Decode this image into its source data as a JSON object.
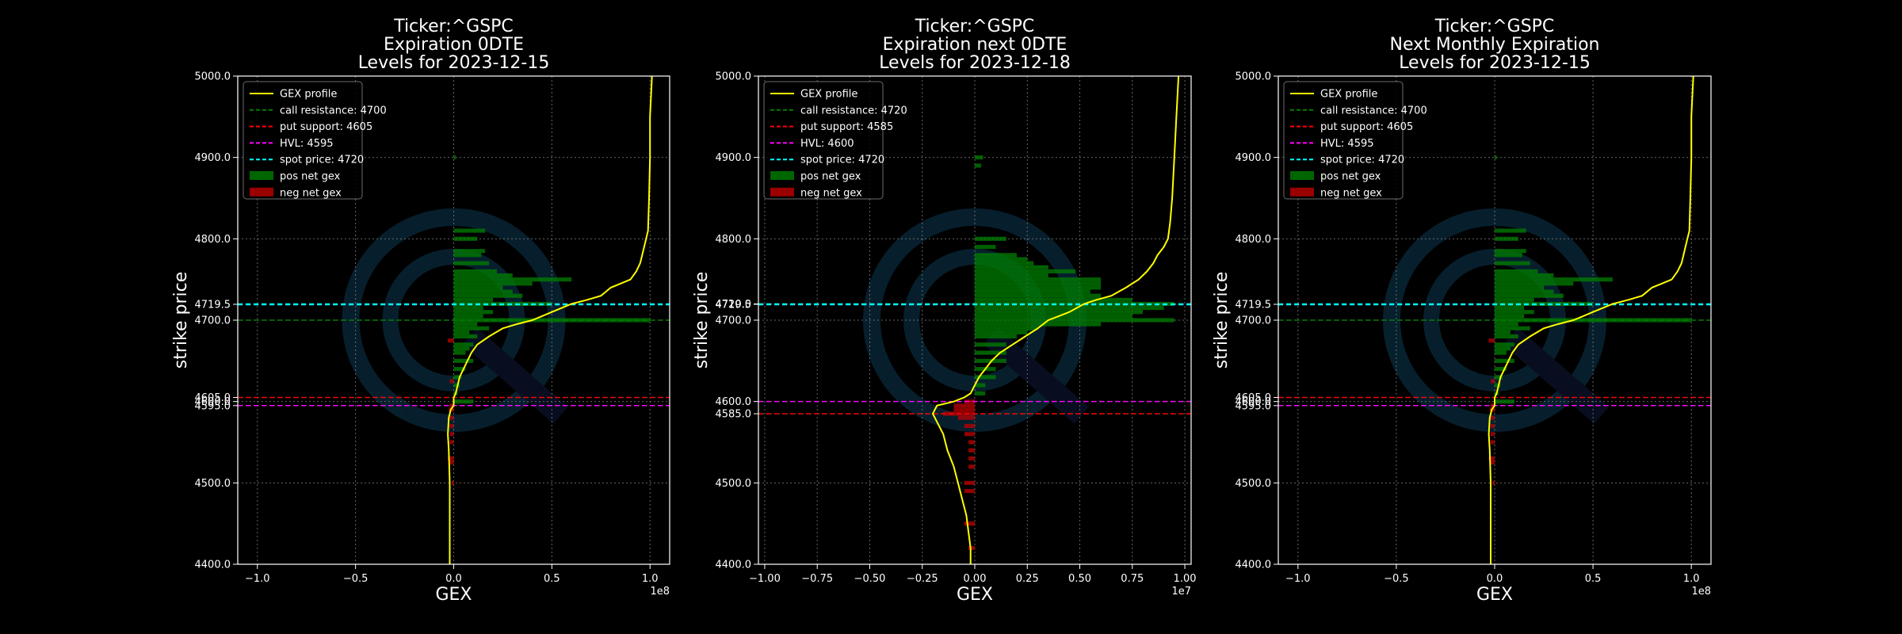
{
  "figure": {
    "background": "#000000",
    "watermark_color": "#0d3a52"
  },
  "colors": {
    "gex_profile": "#ffff00",
    "call_resistance": "#008000",
    "put_support": "#ff0000",
    "hvl": "#ff00ff",
    "spot_price": "#00ffff",
    "pos_net_gex": "#008000",
    "neg_net_gex": "#c00000",
    "axis": "#ffffff",
    "grid": "#808080"
  },
  "chart_data": [
    {
      "type": "bar",
      "orientation": "horizontal",
      "title": [
        "Ticker:^GSPC",
        "Expiration 0DTE",
        "Levels for 2023-12-15"
      ],
      "xlabel": "GEX",
      "ylabel": "strike price",
      "x_offset_label": "1e8",
      "xlim": [
        -1.1,
        1.1
      ],
      "ylim": [
        4400,
        5000
      ],
      "xticks": [
        -1.0,
        -0.5,
        0.0,
        0.5,
        1.0
      ],
      "xtick_labels": [
        "−1.0",
        "−0.5",
        "0.0",
        "0.5",
        "1.0"
      ],
      "yticks": [
        4400,
        4500,
        4595,
        4600,
        4605,
        4700,
        4719.5,
        4800,
        4900,
        5000
      ],
      "ytick_labels": [
        "4400.0",
        "4500.0",
        "4595.0",
        "4600.0",
        "4605.0",
        "4700.0",
        "4719.5",
        "4800.0",
        "4900.0",
        "5000.0"
      ],
      "grid": true,
      "legend_position": "top-left",
      "legend": [
        "GEX profile",
        "call resistance: 4700",
        "put support: 4605",
        "HVL: 4595",
        "spot price: 4720",
        "pos net gex",
        "neg net gex"
      ],
      "levels": {
        "call_resistance": 4700,
        "put_support": 4605,
        "hvl": 4595,
        "spot_price": 4719.5
      },
      "net_gex_bars": [
        {
          "strike": 4900,
          "value": 0.01
        },
        {
          "strike": 4810,
          "value": 0.16
        },
        {
          "strike": 4800,
          "value": 0.12
        },
        {
          "strike": 4785,
          "value": 0.16
        },
        {
          "strike": 4780,
          "value": 0.14
        },
        {
          "strike": 4770,
          "value": 0.18
        },
        {
          "strike": 4760,
          "value": 0.22
        },
        {
          "strike": 4755,
          "value": 0.3
        },
        {
          "strike": 4750,
          "value": 0.6
        },
        {
          "strike": 4745,
          "value": 0.4
        },
        {
          "strike": 4740,
          "value": 0.25
        },
        {
          "strike": 4735,
          "value": 0.3
        },
        {
          "strike": 4730,
          "value": 0.35
        },
        {
          "strike": 4725,
          "value": 0.2
        },
        {
          "strike": 4720,
          "value": 0.5
        },
        {
          "strike": 4715,
          "value": 0.15
        },
        {
          "strike": 4710,
          "value": 0.2
        },
        {
          "strike": 4705,
          "value": 0.15
        },
        {
          "strike": 4700,
          "value": 1.0
        },
        {
          "strike": 4695,
          "value": 0.12
        },
        {
          "strike": 4690,
          "value": 0.18
        },
        {
          "strike": 4685,
          "value": 0.08
        },
        {
          "strike": 4680,
          "value": 0.12
        },
        {
          "strike": 4675,
          "value": -0.03
        },
        {
          "strike": 4670,
          "value": 0.1
        },
        {
          "strike": 4665,
          "value": 0.08
        },
        {
          "strike": 4660,
          "value": 0.06
        },
        {
          "strike": 4650,
          "value": 0.1
        },
        {
          "strike": 4640,
          "value": 0.06
        },
        {
          "strike": 4630,
          "value": 0.04
        },
        {
          "strike": 4625,
          "value": -0.02
        },
        {
          "strike": 4620,
          "value": 0.03
        },
        {
          "strike": 4610,
          "value": 0.02
        },
        {
          "strike": 4600,
          "value": 0.1
        },
        {
          "strike": 4595,
          "value": -0.02
        },
        {
          "strike": 4590,
          "value": -0.025
        },
        {
          "strike": 4580,
          "value": -0.02
        },
        {
          "strike": 4570,
          "value": -0.02
        },
        {
          "strike": 4560,
          "value": -0.02
        },
        {
          "strike": 4550,
          "value": -0.02
        },
        {
          "strike": 4530,
          "value": -0.03
        },
        {
          "strike": 4525,
          "value": -0.025
        },
        {
          "strike": 4500,
          "value": -0.01
        }
      ],
      "profile": {
        "strike": [
          4400,
          4450,
          4500,
          4540,
          4560,
          4580,
          4590,
          4595,
          4600,
          4605,
          4610,
          4620,
          4630,
          4640,
          4650,
          4660,
          4670,
          4680,
          4690,
          4695,
          4700,
          4705,
          4710,
          4715,
          4720,
          4725,
          4730,
          4740,
          4745,
          4750,
          4760,
          4770,
          4780,
          4790,
          4800,
          4810,
          4850,
          4900,
          4950,
          5000
        ],
        "value": [
          -0.02,
          -0.02,
          -0.02,
          -0.025,
          -0.03,
          -0.025,
          -0.015,
          0.0,
          0.0,
          0.0,
          0.01,
          0.02,
          0.03,
          0.05,
          0.07,
          0.09,
          0.12,
          0.18,
          0.25,
          0.32,
          0.4,
          0.45,
          0.5,
          0.55,
          0.6,
          0.68,
          0.75,
          0.8,
          0.85,
          0.9,
          0.93,
          0.95,
          0.96,
          0.97,
          0.98,
          0.99,
          0.995,
          1.0,
          1.0,
          1.01
        ]
      }
    },
    {
      "type": "bar",
      "orientation": "horizontal",
      "title": [
        "Ticker:^GSPC",
        "Expiration next 0DTE",
        "Levels for 2023-12-18"
      ],
      "xlabel": "GEX",
      "ylabel": "strike price",
      "x_offset_label": "1e7",
      "xlim": [
        -1.03,
        1.03
      ],
      "ylim": [
        4400,
        5000
      ],
      "xticks": [
        -1.0,
        -0.75,
        -0.5,
        -0.25,
        0.0,
        0.25,
        0.5,
        0.75,
        1.0
      ],
      "xtick_labels": [
        "−1.00",
        "−0.75",
        "−0.50",
        "−0.25",
        "0.00",
        "0.25",
        "0.50",
        "0.75",
        "1.00"
      ],
      "yticks": [
        4400,
        4500,
        4585,
        4600,
        4700,
        4719.5,
        4720,
        4800,
        4900,
        5000
      ],
      "ytick_labels": [
        "4400.0",
        "4500.0",
        "4585.0",
        "4600.0",
        "4700.0",
        "4719.5",
        "4720.0",
        "4800.0",
        "4900.0",
        "5000.0"
      ],
      "grid": true,
      "legend_position": "top-left",
      "legend": [
        "GEX profile",
        "call resistance: 4720",
        "put support: 4585",
        "HVL: 4600",
        "spot price: 4720",
        "pos net gex",
        "neg net gex"
      ],
      "levels": {
        "call_resistance": 4720,
        "put_support": 4585,
        "hvl": 4600,
        "spot_price": 4719.5
      },
      "net_gex_bars": [
        {
          "strike": 4900,
          "value": 0.04
        },
        {
          "strike": 4890,
          "value": 0.03
        },
        {
          "strike": 4800,
          "value": 0.15
        },
        {
          "strike": 4790,
          "value": 0.1
        },
        {
          "strike": 4780,
          "value": 0.2
        },
        {
          "strike": 4775,
          "value": 0.25
        },
        {
          "strike": 4770,
          "value": 0.28
        },
        {
          "strike": 4765,
          "value": 0.35
        },
        {
          "strike": 4760,
          "value": 0.48
        },
        {
          "strike": 4755,
          "value": 0.35
        },
        {
          "strike": 4750,
          "value": 0.6
        },
        {
          "strike": 4745,
          "value": 0.6
        },
        {
          "strike": 4740,
          "value": 0.6
        },
        {
          "strike": 4735,
          "value": 0.55
        },
        {
          "strike": 4730,
          "value": 0.6
        },
        {
          "strike": 4725,
          "value": 0.75
        },
        {
          "strike": 4720,
          "value": 0.95
        },
        {
          "strike": 4715,
          "value": 0.9
        },
        {
          "strike": 4710,
          "value": 0.8
        },
        {
          "strike": 4705,
          "value": 0.75
        },
        {
          "strike": 4700,
          "value": 0.95
        },
        {
          "strike": 4695,
          "value": 0.6
        },
        {
          "strike": 4690,
          "value": 0.3
        },
        {
          "strike": 4685,
          "value": 0.25
        },
        {
          "strike": 4680,
          "value": 0.2
        },
        {
          "strike": 4670,
          "value": 0.15
        },
        {
          "strike": 4660,
          "value": 0.15
        },
        {
          "strike": 4650,
          "value": 0.15
        },
        {
          "strike": 4640,
          "value": 0.1
        },
        {
          "strike": 4630,
          "value": 0.1
        },
        {
          "strike": 4620,
          "value": 0.05
        },
        {
          "strike": 4610,
          "value": 0.05
        },
        {
          "strike": 4600,
          "value": -0.05
        },
        {
          "strike": 4595,
          "value": -0.1
        },
        {
          "strike": 4590,
          "value": -0.1
        },
        {
          "strike": 4585,
          "value": -0.15
        },
        {
          "strike": 4580,
          "value": -0.08
        },
        {
          "strike": 4570,
          "value": -0.05
        },
        {
          "strike": 4560,
          "value": -0.05
        },
        {
          "strike": 4550,
          "value": -0.03
        },
        {
          "strike": 4540,
          "value": -0.03
        },
        {
          "strike": 4530,
          "value": -0.03
        },
        {
          "strike": 4520,
          "value": -0.03
        },
        {
          "strike": 4500,
          "value": -0.05
        },
        {
          "strike": 4490,
          "value": -0.05
        },
        {
          "strike": 4450,
          "value": -0.05
        },
        {
          "strike": 4420,
          "value": -0.03
        }
      ],
      "profile": {
        "strike": [
          4400,
          4420,
          4440,
          4460,
          4480,
          4500,
          4520,
          4540,
          4560,
          4575,
          4585,
          4595,
          4600,
          4605,
          4610,
          4620,
          4630,
          4640,
          4650,
          4660,
          4670,
          4680,
          4690,
          4700,
          4705,
          4710,
          4720,
          4725,
          4730,
          4740,
          4750,
          4760,
          4770,
          4780,
          4790,
          4800,
          4820,
          4850,
          4900,
          4950,
          5000
        ],
        "value": [
          -0.02,
          -0.02,
          -0.03,
          -0.04,
          -0.06,
          -0.08,
          -0.1,
          -0.13,
          -0.15,
          -0.18,
          -0.2,
          -0.18,
          -0.1,
          -0.05,
          -0.02,
          0.0,
          0.02,
          0.05,
          0.08,
          0.12,
          0.18,
          0.24,
          0.3,
          0.35,
          0.4,
          0.45,
          0.52,
          0.58,
          0.65,
          0.72,
          0.78,
          0.82,
          0.85,
          0.87,
          0.9,
          0.92,
          0.93,
          0.94,
          0.95,
          0.96,
          0.97
        ]
      }
    },
    {
      "type": "bar",
      "orientation": "horizontal",
      "title": [
        "Ticker:^GSPC",
        "Next Monthly Expiration",
        "Levels for 2023-12-15"
      ],
      "xlabel": "GEX",
      "ylabel": "strike price",
      "x_offset_label": "1e8",
      "xlim": [
        -1.1,
        1.1
      ],
      "ylim": [
        4400,
        5000
      ],
      "xticks": [
        -1.0,
        -0.5,
        0.0,
        0.5,
        1.0
      ],
      "xtick_labels": [
        "−1.0",
        "−0.5",
        "0.0",
        "0.5",
        "1.0"
      ],
      "yticks": [
        4400,
        4500,
        4595,
        4600,
        4605,
        4700,
        4719.5,
        4800,
        4900,
        5000
      ],
      "ytick_labels": [
        "4400.0",
        "4500.0",
        "4595.0",
        "4600.0",
        "4605.0",
        "4700.0",
        "4719.5",
        "4800.0",
        "4900.0",
        "5000.0"
      ],
      "grid": true,
      "legend_position": "top-left",
      "legend": [
        "GEX profile",
        "call resistance: 4700",
        "put support: 4605",
        "HVL: 4595",
        "spot price: 4720",
        "pos net gex",
        "neg net gex"
      ],
      "levels": {
        "call_resistance": 4700,
        "put_support": 4605,
        "hvl": 4595,
        "spot_price": 4719.5
      },
      "net_gex_bars": [
        {
          "strike": 4900,
          "value": 0.01
        },
        {
          "strike": 4810,
          "value": 0.16
        },
        {
          "strike": 4800,
          "value": 0.12
        },
        {
          "strike": 4785,
          "value": 0.16
        },
        {
          "strike": 4780,
          "value": 0.14
        },
        {
          "strike": 4770,
          "value": 0.18
        },
        {
          "strike": 4760,
          "value": 0.22
        },
        {
          "strike": 4755,
          "value": 0.3
        },
        {
          "strike": 4750,
          "value": 0.6
        },
        {
          "strike": 4745,
          "value": 0.4
        },
        {
          "strike": 4740,
          "value": 0.25
        },
        {
          "strike": 4735,
          "value": 0.3
        },
        {
          "strike": 4730,
          "value": 0.35
        },
        {
          "strike": 4725,
          "value": 0.2
        },
        {
          "strike": 4720,
          "value": 0.5
        },
        {
          "strike": 4715,
          "value": 0.15
        },
        {
          "strike": 4710,
          "value": 0.2
        },
        {
          "strike": 4705,
          "value": 0.15
        },
        {
          "strike": 4700,
          "value": 1.0
        },
        {
          "strike": 4695,
          "value": 0.12
        },
        {
          "strike": 4690,
          "value": 0.18
        },
        {
          "strike": 4685,
          "value": 0.08
        },
        {
          "strike": 4680,
          "value": 0.12
        },
        {
          "strike": 4675,
          "value": -0.03
        },
        {
          "strike": 4670,
          "value": 0.1
        },
        {
          "strike": 4665,
          "value": 0.08
        },
        {
          "strike": 4660,
          "value": 0.06
        },
        {
          "strike": 4650,
          "value": 0.1
        },
        {
          "strike": 4640,
          "value": 0.06
        },
        {
          "strike": 4630,
          "value": 0.04
        },
        {
          "strike": 4625,
          "value": -0.02
        },
        {
          "strike": 4620,
          "value": 0.03
        },
        {
          "strike": 4610,
          "value": 0.02
        },
        {
          "strike": 4600,
          "value": 0.1
        },
        {
          "strike": 4595,
          "value": -0.02
        },
        {
          "strike": 4590,
          "value": -0.025
        },
        {
          "strike": 4580,
          "value": -0.02
        },
        {
          "strike": 4570,
          "value": -0.02
        },
        {
          "strike": 4560,
          "value": -0.02
        },
        {
          "strike": 4550,
          "value": -0.02
        },
        {
          "strike": 4530,
          "value": -0.03
        },
        {
          "strike": 4525,
          "value": -0.025
        },
        {
          "strike": 4500,
          "value": -0.01
        }
      ],
      "profile": {
        "strike": [
          4400,
          4450,
          4500,
          4540,
          4560,
          4580,
          4590,
          4595,
          4600,
          4605,
          4610,
          4620,
          4630,
          4640,
          4650,
          4660,
          4670,
          4680,
          4690,
          4695,
          4700,
          4705,
          4710,
          4715,
          4720,
          4725,
          4730,
          4740,
          4745,
          4750,
          4760,
          4770,
          4780,
          4790,
          4800,
          4810,
          4850,
          4900,
          4950,
          5000
        ],
        "value": [
          -0.02,
          -0.02,
          -0.02,
          -0.025,
          -0.03,
          -0.025,
          -0.015,
          0.0,
          0.0,
          0.0,
          0.01,
          0.02,
          0.03,
          0.05,
          0.07,
          0.09,
          0.12,
          0.18,
          0.25,
          0.32,
          0.4,
          0.45,
          0.5,
          0.55,
          0.6,
          0.68,
          0.75,
          0.8,
          0.85,
          0.9,
          0.93,
          0.95,
          0.96,
          0.97,
          0.98,
          0.99,
          0.995,
          1.0,
          1.0,
          1.01
        ]
      }
    }
  ]
}
